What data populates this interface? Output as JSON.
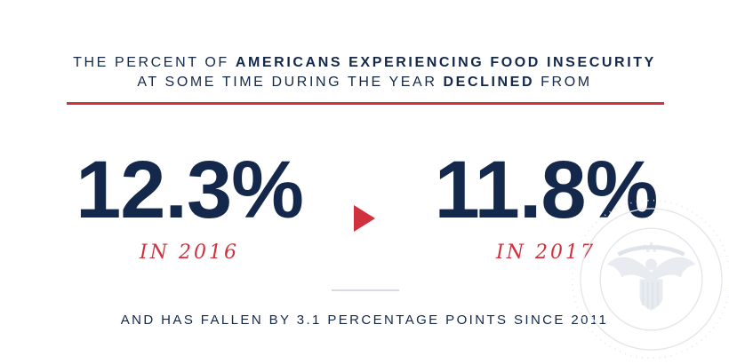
{
  "headline": {
    "line1_pre": "THE PERCENT OF ",
    "line1_bold": "AMERICANS EXPERIENCING FOOD INSECURITY",
    "line2_pre": "AT SOME TIME DURING THE YEAR ",
    "line2_bold": "DECLINED",
    "line2_post": " FROM"
  },
  "stats": {
    "from_value": "12.3%",
    "from_year": "IN 2016",
    "to_value": "11.8%",
    "to_year": "IN 2017"
  },
  "footer": "AND HAS FALLEN BY 3.1 PERCENTAGE POINTS SINCE 2011",
  "colors": {
    "navy": "#14284b",
    "red": "#d0313d",
    "divider": "#d7dbe2",
    "seal": "#e3e6ec"
  },
  "icons": {
    "arrow": "right-triangle-icon",
    "seal": "presidential-seal-watermark"
  }
}
